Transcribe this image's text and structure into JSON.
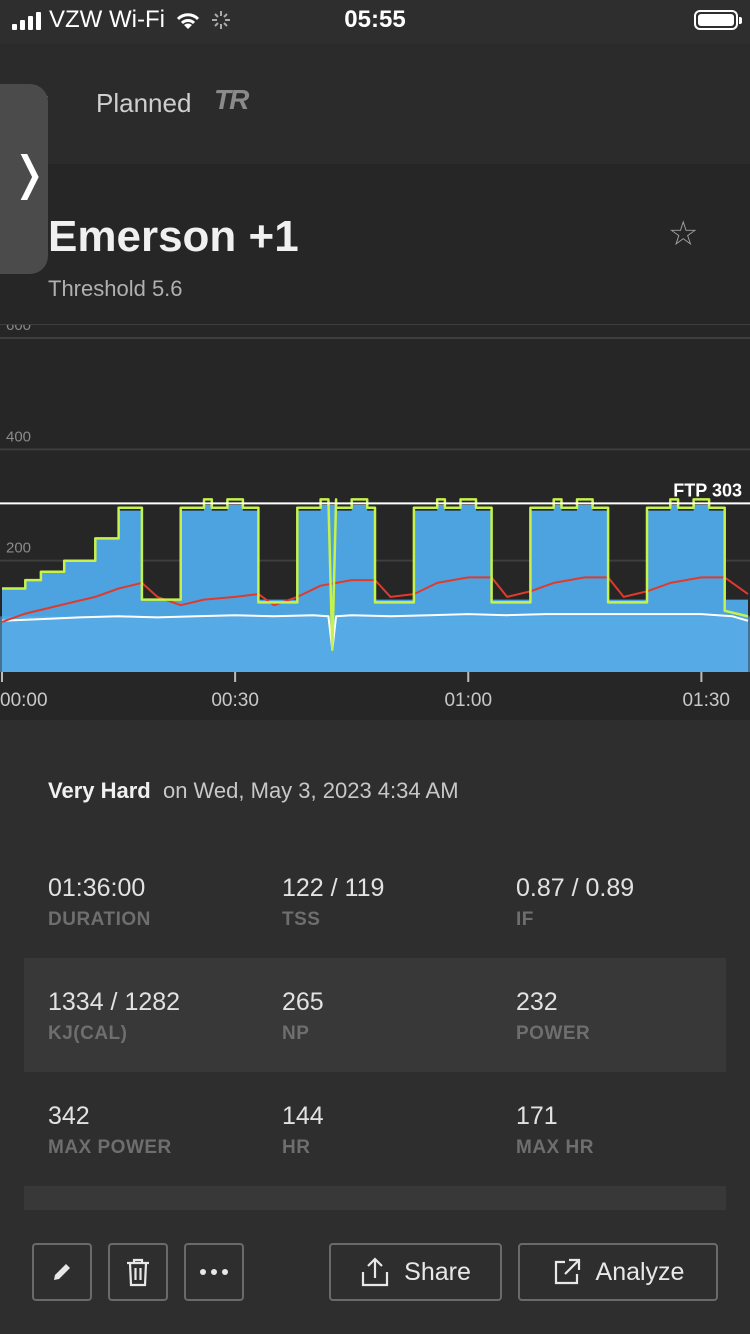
{
  "status_bar": {
    "carrier": "VZW Wi-Fi",
    "time": "05:55"
  },
  "nav": {
    "title": "Planned",
    "logo": "TR"
  },
  "workout": {
    "title": "Emerson +1",
    "subtitle": "Threshold 5.6"
  },
  "colors": {
    "planned_fill": "#4da3e0",
    "actual_power": "#c6f24a",
    "heart_rate": "#e03a2b",
    "cadence": "#ffffff",
    "ftp_line": "#ffffff"
  },
  "chart_data": {
    "type": "area",
    "ylim": [
      0,
      600
    ],
    "y_ticks": [
      "600",
      "400",
      "200"
    ],
    "y_tick_values": [
      600,
      400,
      200
    ],
    "x_ticks": [
      "00:00",
      "00:30",
      "01:00",
      "01:30"
    ],
    "x_tick_minutes": [
      0,
      30,
      60,
      90
    ],
    "duration_min": 96,
    "ftp_label": "FTP 303",
    "ftp": 303,
    "series": [
      {
        "name": "planned",
        "x": [
          0,
          3,
          3,
          5,
          5,
          8,
          8,
          12,
          12,
          15,
          15,
          18,
          18,
          23,
          23,
          26,
          26,
          27,
          27,
          29,
          29,
          31,
          31,
          33,
          33,
          33.5,
          33.5,
          38,
          38,
          41,
          41,
          43,
          43,
          45,
          45,
          47,
          47,
          48,
          48,
          53,
          53,
          56,
          56,
          57,
          57,
          59,
          59,
          61,
          61,
          63,
          63,
          68,
          68,
          71,
          71,
          72,
          72,
          74,
          74,
          76,
          76,
          78,
          78,
          83,
          83,
          86,
          86,
          87,
          87,
          89,
          89,
          91,
          91,
          93,
          93,
          96
        ],
        "values": [
          150,
          150,
          165,
          165,
          180,
          180,
          200,
          200,
          240,
          240,
          290,
          290,
          130,
          130,
          290,
          290,
          300,
          300,
          290,
          290,
          300,
          300,
          290,
          290,
          130,
          130,
          130,
          130,
          290,
          290,
          300,
          300,
          290,
          290,
          300,
          300,
          290,
          290,
          130,
          130,
          290,
          290,
          300,
          300,
          290,
          290,
          300,
          300,
          290,
          290,
          130,
          130,
          290,
          290,
          300,
          300,
          290,
          290,
          300,
          300,
          290,
          290,
          130,
          130,
          290,
          290,
          300,
          300,
          290,
          290,
          300,
          300,
          290,
          290,
          130,
          130
        ]
      },
      {
        "name": "heart_rate",
        "x": [
          0,
          3,
          6,
          9,
          12,
          15,
          18,
          20,
          23,
          26,
          30,
          33,
          35,
          38,
          41,
          45,
          48,
          50,
          53,
          56,
          60,
          63,
          65,
          68,
          71,
          75,
          78,
          80,
          83,
          86,
          90,
          93,
          96
        ],
        "values": [
          90,
          105,
          115,
          125,
          135,
          150,
          160,
          135,
          120,
          130,
          135,
          140,
          120,
          135,
          155,
          165,
          165,
          135,
          140,
          160,
          170,
          170,
          135,
          145,
          160,
          170,
          170,
          135,
          145,
          160,
          170,
          170,
          140
        ]
      },
      {
        "name": "cadence",
        "x": [
          0,
          5,
          10,
          15,
          20,
          25,
          30,
          35,
          40,
          42,
          42.5,
          43,
          45,
          50,
          55,
          60,
          65,
          70,
          75,
          80,
          85,
          90,
          94,
          96
        ],
        "values": [
          92,
          95,
          98,
          100,
          98,
          100,
          102,
          100,
          102,
          100,
          40,
          100,
          102,
          100,
          102,
          104,
          102,
          104,
          104,
          104,
          104,
          104,
          100,
          92
        ]
      },
      {
        "name": "actual_power",
        "x": [
          0,
          3,
          3,
          5,
          5,
          8,
          8,
          12,
          12,
          15,
          15,
          18,
          18,
          23,
          23,
          26,
          26,
          27,
          27,
          29,
          29,
          31,
          31,
          33,
          33,
          38,
          38,
          41,
          41,
          42,
          42.5,
          43,
          43,
          45,
          45,
          47,
          47,
          48,
          48,
          53,
          53,
          56,
          56,
          57,
          57,
          59,
          59,
          61,
          61,
          63,
          63,
          68,
          68,
          71,
          71,
          72,
          72,
          74,
          74,
          76,
          76,
          78,
          78,
          83,
          83,
          86,
          86,
          87,
          87,
          89,
          89,
          91,
          91,
          93,
          93,
          96
        ],
        "values": [
          150,
          150,
          165,
          165,
          180,
          180,
          200,
          200,
          240,
          240,
          295,
          295,
          130,
          130,
          295,
          295,
          310,
          310,
          295,
          295,
          310,
          310,
          295,
          295,
          125,
          125,
          295,
          295,
          310,
          310,
          40,
          310,
          295,
          295,
          310,
          310,
          295,
          295,
          125,
          125,
          295,
          295,
          310,
          310,
          295,
          295,
          310,
          310,
          295,
          295,
          125,
          125,
          295,
          295,
          310,
          310,
          295,
          295,
          310,
          310,
          295,
          295,
          125,
          125,
          295,
          295,
          310,
          310,
          295,
          295,
          310,
          310,
          295,
          295,
          110,
          100
        ]
      }
    ]
  },
  "summary": {
    "rating": "Very Hard",
    "date": "on Wed, May 3, 2023 4:34 AM"
  },
  "stats": [
    [
      {
        "value": "01:36:00",
        "label": "DURATION"
      },
      {
        "value": "122 / 119",
        "label": "TSS"
      },
      {
        "value": "0.87 / 0.89",
        "label": "IF"
      }
    ],
    [
      {
        "value": "1334 / 1282",
        "label": "KJ(CAL)"
      },
      {
        "value": "265",
        "label": "NP"
      },
      {
        "value": "232",
        "label": "POWER"
      }
    ],
    [
      {
        "value": "342",
        "label": "MAX POWER"
      },
      {
        "value": "144",
        "label": "HR"
      },
      {
        "value": "171",
        "label": "MAX HR"
      }
    ]
  ],
  "actions": {
    "share": "Share",
    "analyze": "Analyze"
  },
  "icons": {
    "back": "chevron-left-icon",
    "side": "chevron-right-icon",
    "favorite": "star-icon",
    "edit": "pencil-icon",
    "delete": "trash-icon",
    "more": "ellipsis-icon",
    "share": "share-icon",
    "analyze": "external-link-icon"
  }
}
